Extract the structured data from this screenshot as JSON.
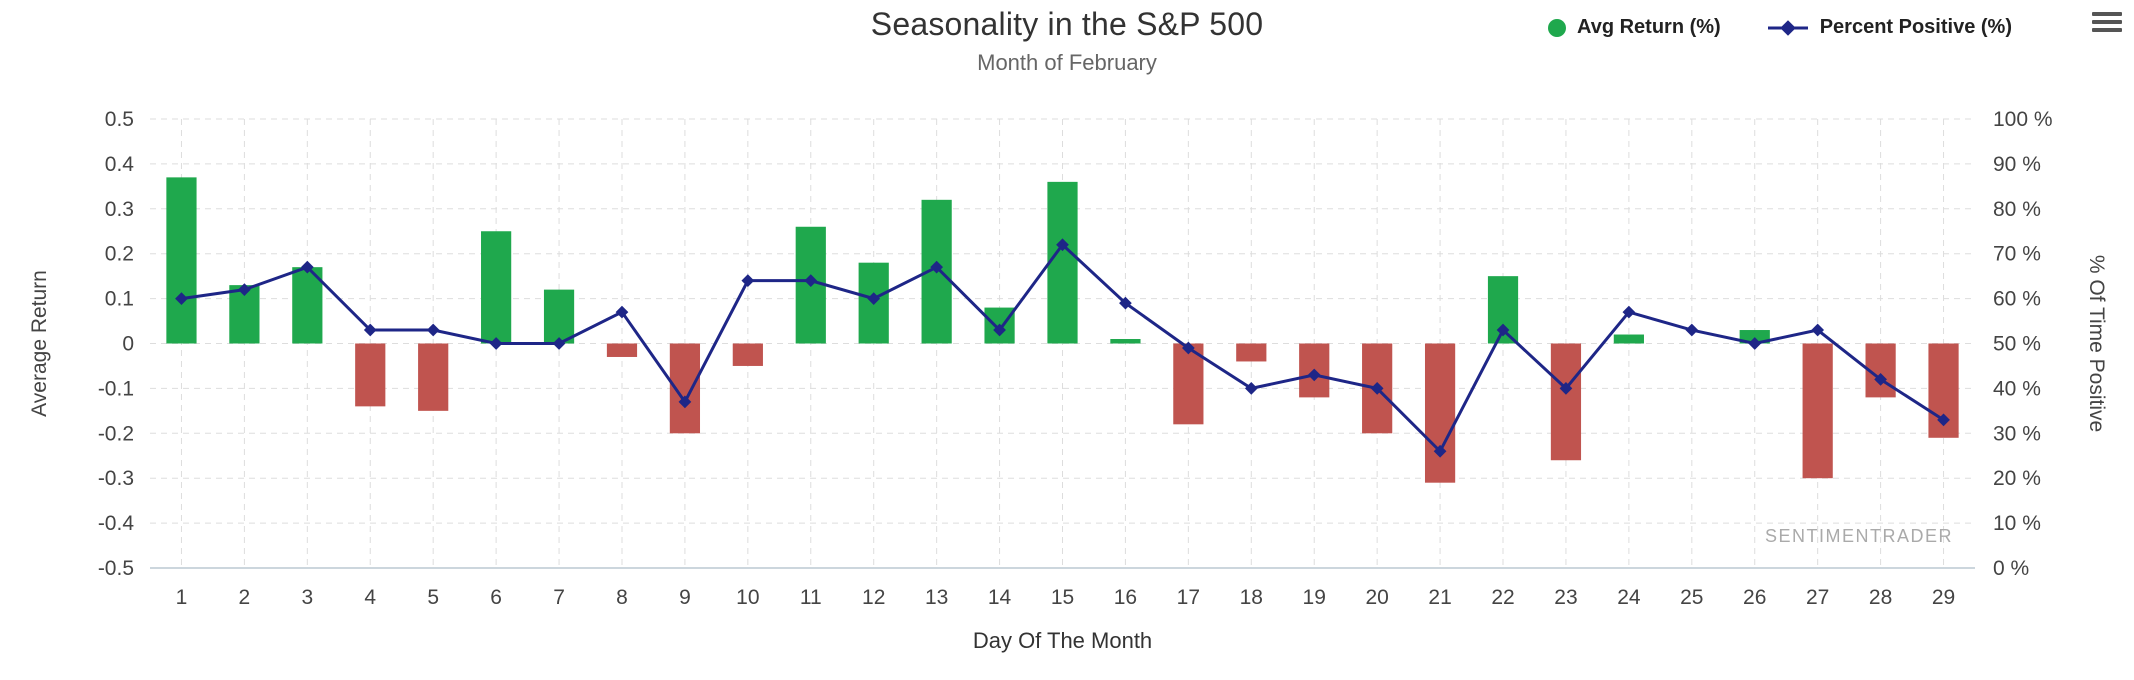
{
  "header": {
    "title": "Seasonality in the S&P 500",
    "subtitle": "Month of February"
  },
  "legend": {
    "items": [
      {
        "label": "Avg Return (%)",
        "marker": "circle-icon",
        "color": "#1fa84d"
      },
      {
        "label": "Percent Positive (%)",
        "marker": "diamond-line-icon",
        "color": "#1e2687"
      }
    ]
  },
  "watermark": "SENTIMENTRADER",
  "colors": {
    "positive_bar": "#1fa84d",
    "negative_bar": "#c0544f",
    "line": "#1e2687",
    "grid": "#dddddd",
    "axis_line": "#ccd6dd",
    "axis_text": "#444444",
    "watermark": "#aaaaaa"
  },
  "chart_data": {
    "type": "bar+line",
    "title": "Seasonality in the S&P 500",
    "subtitle": "Month of February",
    "xlabel": "Day Of The Month",
    "ylabel_left": "Average Return",
    "ylabel_right": "% Of Time Positive",
    "grid": "dashed",
    "legend_position": "top-right",
    "categories": [
      1,
      2,
      3,
      4,
      5,
      6,
      7,
      8,
      9,
      10,
      11,
      12,
      13,
      14,
      15,
      16,
      17,
      18,
      19,
      20,
      21,
      22,
      23,
      24,
      25,
      26,
      27,
      28,
      29
    ],
    "series": [
      {
        "name": "Avg Return (%)",
        "type": "bar",
        "axis": "left",
        "positive_color": "#1fa84d",
        "negative_color": "#c0544f",
        "values": [
          0.37,
          0.13,
          0.17,
          -0.14,
          -0.15,
          0.25,
          0.12,
          -0.03,
          -0.2,
          -0.05,
          0.26,
          0.18,
          0.32,
          0.08,
          0.36,
          0.01,
          -0.18,
          -0.04,
          -0.12,
          -0.2,
          -0.31,
          0.15,
          -0.26,
          0.02,
          0.0,
          0.03,
          -0.3,
          -0.12,
          -0.21
        ]
      },
      {
        "name": "Percent Positive (%)",
        "type": "line",
        "axis": "right",
        "color": "#1e2687",
        "values": [
          60,
          62,
          67,
          53,
          53,
          50,
          50,
          57,
          37,
          64,
          64,
          60,
          67,
          53,
          72,
          59,
          49,
          40,
          43,
          40,
          26,
          53,
          40,
          57,
          53,
          50,
          53,
          42,
          33
        ]
      }
    ],
    "y_left": {
      "min": -0.5,
      "max": 0.5,
      "tick_values": [
        0.5,
        0.4,
        0.3,
        0.2,
        0.1,
        0,
        -0.1,
        -0.2,
        -0.3,
        -0.4,
        -0.5
      ],
      "tick_labels": [
        "0.5",
        "0.4",
        "0.3",
        "0.2",
        "0.1",
        "0",
        "-0.1",
        "-0.2",
        "-0.3",
        "-0.4",
        "-0.5"
      ]
    },
    "y_right": {
      "min": 0,
      "max": 100,
      "tick_values": [
        100,
        90,
        80,
        70,
        60,
        50,
        40,
        30,
        20,
        10,
        0
      ],
      "tick_labels": [
        "100 %",
        "90 %",
        "80 %",
        "70 %",
        "60 %",
        "50 %",
        "40 %",
        "30 %",
        "20 %",
        "10 %",
        "0 %"
      ]
    }
  }
}
